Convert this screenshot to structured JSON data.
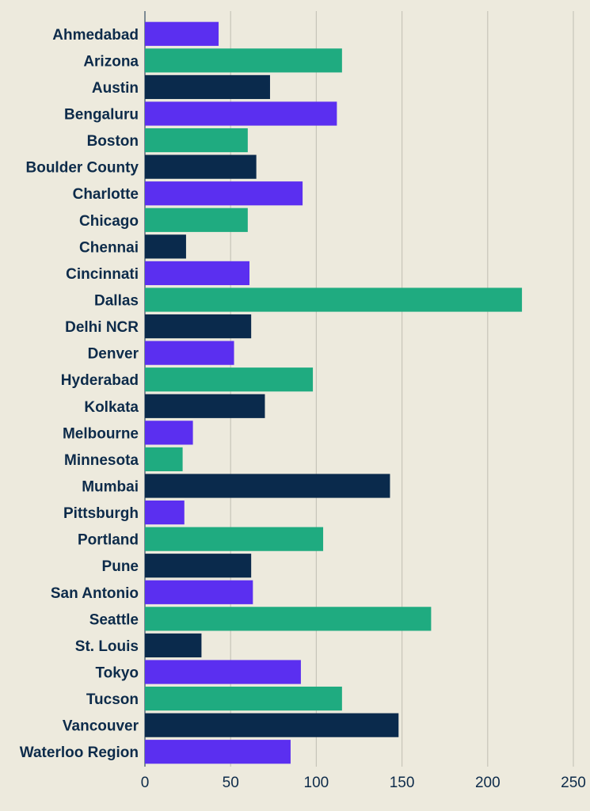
{
  "chart_data": {
    "type": "bar",
    "orientation": "horizontal",
    "categories": [
      "Ahmedabad",
      "Arizona",
      "Austin",
      "Bengaluru",
      "Boston",
      "Boulder County",
      "Charlotte",
      "Chicago",
      "Chennai",
      "Cincinnati",
      "Dallas",
      "Delhi NCR",
      "Denver",
      "Hyderabad",
      "Kolkata",
      "Melbourne",
      "Minnesota",
      "Mumbai",
      "Pittsburgh",
      "Portland",
      "Pune",
      "San Antonio",
      "Seattle",
      "St. Louis",
      "Tokyo",
      "Tucson",
      "Vancouver",
      "Waterloo Region"
    ],
    "values": [
      43,
      115,
      73,
      112,
      60,
      65,
      92,
      60,
      24,
      61,
      220,
      62,
      52,
      98,
      70,
      28,
      22,
      143,
      23,
      104,
      62,
      63,
      167,
      33,
      91,
      115,
      148,
      85
    ],
    "bar_colors": [
      "#5b2ff0",
      "#1fab80",
      "#0a2a4c"
    ],
    "xticks": [
      0,
      50,
      100,
      150,
      200,
      250
    ],
    "xlim": [
      0,
      250
    ],
    "title": "",
    "xlabel": "",
    "ylabel": "",
    "grid": "vertical",
    "legend": "none"
  },
  "colors": {
    "background": "#edeadd",
    "text": "#0d2b4a",
    "grid": "#c7c5b9"
  }
}
